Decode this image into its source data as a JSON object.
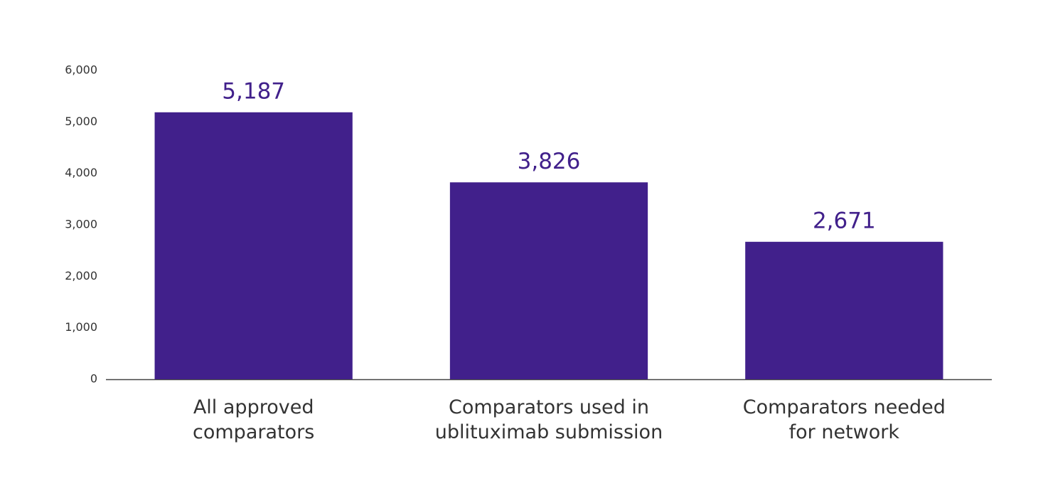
{
  "chart_data": {
    "type": "bar",
    "categories": [
      "All approved\ncomparators",
      "Comparators used in\nublituximab submission",
      "Comparators needed\nfor network"
    ],
    "values": [
      5187,
      3826,
      2671
    ],
    "value_labels": [
      "5,187",
      "3,826",
      "2,671"
    ],
    "color": "#41208b",
    "ylim": [
      0,
      6000
    ],
    "yticks": [
      0,
      {
        "value": 1000,
        "label": "1,000"
      },
      {
        "value": 2000,
        "label": "2,000"
      },
      {
        "value": 3000,
        "label": "3,000"
      },
      {
        "value": 4000,
        "label": "4,000"
      },
      {
        "value": 5000,
        "label": "5,000"
      },
      {
        "value": 6000,
        "label": "6,000"
      }
    ],
    "grid": false
  }
}
